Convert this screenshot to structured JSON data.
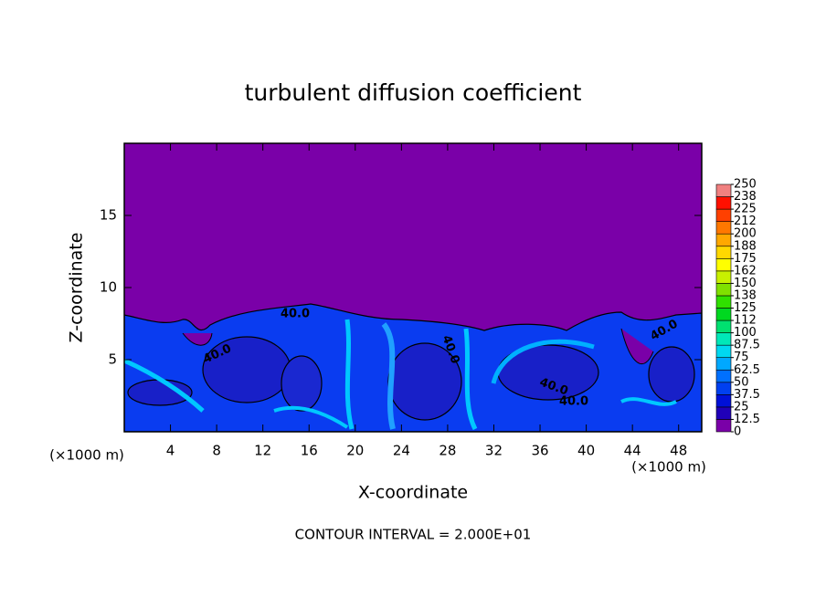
{
  "chart_data": {
    "type": "contour",
    "title": "turbulent diffusion coefficient",
    "xlabel": "X-coordinate",
    "ylabel": "Z-coordinate",
    "x_unit": "(×1000 m)",
    "footer": "CONTOUR INTERVAL = 2.000E+01",
    "xlim": [
      0,
      50
    ],
    "ylim": [
      0,
      20
    ],
    "xticks": [
      4,
      8,
      12,
      16,
      20,
      24,
      28,
      32,
      36,
      40,
      44,
      48
    ],
    "yticks": [
      5,
      10,
      15
    ],
    "contour_labels": [
      "40.0",
      "40.0",
      "40.0",
      "40.0",
      "40.0",
      "40.0"
    ],
    "colorbar": {
      "ticks": [
        0,
        12.5,
        25,
        37.5,
        50,
        62.5,
        75,
        87.5,
        100,
        {
          "value": 112.5,
          "label": "112"
        },
        125,
        {
          "value": 137.5,
          "label": "138"
        },
        150,
        {
          "value": 162.5,
          "label": "162"
        },
        175,
        {
          "value": 187.5,
          "label": "188"
        },
        200,
        {
          "value": 212.5,
          "label": "212"
        },
        225,
        {
          "value": 237.5,
          "label": "238"
        },
        250
      ],
      "colors": [
        "#7a00a8",
        "#2000b8",
        "#0010d8",
        "#0040f0",
        "#0070ff",
        "#00a8ff",
        "#00d8f0",
        "#00e8b8",
        "#00e070",
        "#00d820",
        "#30e000",
        "#80e000",
        "#c8f000",
        "#ffff00",
        "#ffd800",
        "#ffa800",
        "#ff7800",
        "#ff4000",
        "#ff1000",
        "#f08080"
      ]
    }
  }
}
